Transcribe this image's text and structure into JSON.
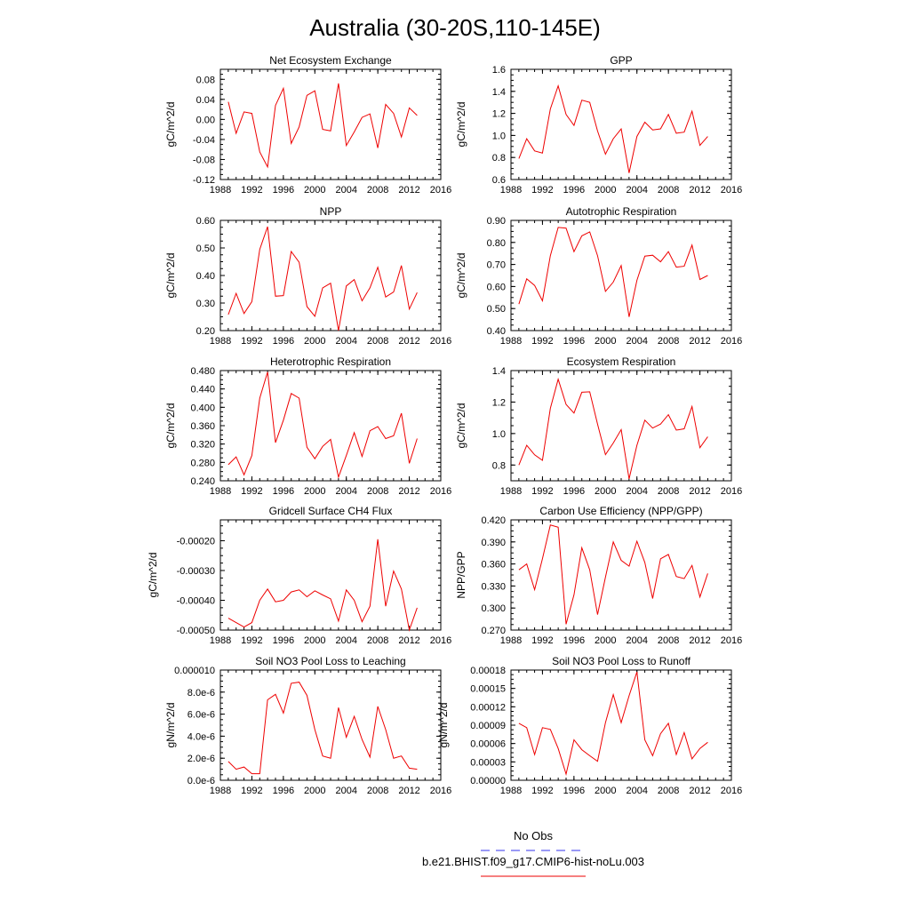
{
  "figure": {
    "title": "Australia (30-20S,110-145E)",
    "legend": [
      {
        "label": "No Obs",
        "color": "#3333ee",
        "dash": true
      },
      {
        "label": "b.e21.BHIST.f09_g17.CMIP6-hist-noLu.003",
        "color": "#ee0000",
        "dash": false
      }
    ]
  },
  "colors": {
    "series": "#ee0000",
    "axis": "#000000",
    "obs": "#3333ee"
  },
  "chart_data": [
    {
      "type": "line",
      "title": "Net Ecosystem Exchange",
      "ylabel": "gC/m^2/d",
      "xlim": [
        1988,
        2016
      ],
      "xticks": [
        1988,
        1992,
        1996,
        2000,
        2004,
        2008,
        2012,
        2016
      ],
      "xtick_labels": [
        "1988",
        "1992",
        "1996",
        "2000",
        "2004",
        "2008",
        "2012",
        "2016"
      ],
      "ylim": [
        -0.12,
        0.1
      ],
      "yticks": [
        -0.12,
        -0.08,
        -0.04,
        0.0,
        0.04,
        0.08
      ],
      "ytick_labels": [
        "-0.12",
        "-0.08",
        "-0.04",
        "0.00",
        "0.04",
        "0.08"
      ],
      "x": [
        1989,
        1990,
        1991,
        1992,
        1993,
        1994,
        1995,
        1996,
        1997,
        1998,
        1999,
        2000,
        2001,
        2002,
        2003,
        2004,
        2005,
        2006,
        2007,
        2008,
        2009,
        2010,
        2011,
        2012,
        2013
      ],
      "series": [
        {
          "values": [
            0.035,
            -0.028,
            0.015,
            0.012,
            -0.065,
            -0.095,
            0.028,
            0.062,
            -0.048,
            -0.015,
            0.048,
            0.057,
            -0.02,
            -0.023,
            0.072,
            -0.052,
            -0.025,
            0.004,
            0.011,
            -0.057,
            0.03,
            0.012,
            -0.035,
            0.023,
            0.008
          ]
        }
      ]
    },
    {
      "type": "line",
      "title": "GPP",
      "ylabel": "gC/m^2/d",
      "xlim": [
        1988,
        2016
      ],
      "xticks": [
        1988,
        1992,
        1996,
        2000,
        2004,
        2008,
        2012,
        2016
      ],
      "xtick_labels": [
        "1988",
        "1992",
        "1996",
        "2000",
        "2004",
        "2008",
        "2012",
        "2016"
      ],
      "ylim": [
        0.6,
        1.6
      ],
      "yticks": [
        0.6,
        0.8,
        1.0,
        1.2,
        1.4,
        1.6
      ],
      "ytick_labels": [
        "0.6",
        "0.8",
        "1.0",
        "1.2",
        "1.4",
        "1.6"
      ],
      "x": [
        1989,
        1990,
        1991,
        1992,
        1993,
        1994,
        1995,
        1996,
        1997,
        1998,
        1999,
        2000,
        2001,
        2002,
        2003,
        2004,
        2005,
        2006,
        2007,
        2008,
        2009,
        2010,
        2011,
        2012,
        2013
      ],
      "series": [
        {
          "values": [
            0.79,
            0.97,
            0.86,
            0.84,
            1.24,
            1.45,
            1.19,
            1.09,
            1.32,
            1.3,
            1.04,
            0.83,
            0.97,
            1.06,
            0.66,
            0.99,
            1.12,
            1.05,
            1.06,
            1.19,
            1.02,
            1.03,
            1.22,
            0.91,
            0.99
          ]
        }
      ]
    },
    {
      "type": "line",
      "title": "NPP",
      "ylabel": "gC/m^2/d",
      "xlim": [
        1988,
        2016
      ],
      "xticks": [
        1988,
        1992,
        1996,
        2000,
        2004,
        2008,
        2012,
        2016
      ],
      "xtick_labels": [
        "1988",
        "1992",
        "1996",
        "2000",
        "2004",
        "2008",
        "2012",
        "2016"
      ],
      "ylim": [
        0.2,
        0.6
      ],
      "yticks": [
        0.2,
        0.3,
        0.4,
        0.5,
        0.6
      ],
      "ytick_labels": [
        "0.20",
        "0.30",
        "0.40",
        "0.50",
        "0.60"
      ],
      "x": [
        1989,
        1990,
        1991,
        1992,
        1993,
        1994,
        1995,
        1996,
        1997,
        1998,
        1999,
        2000,
        2001,
        2002,
        2003,
        2004,
        2005,
        2006,
        2007,
        2008,
        2009,
        2010,
        2011,
        2012,
        2013
      ],
      "series": [
        {
          "values": [
            0.258,
            0.335,
            0.262,
            0.305,
            0.495,
            0.577,
            0.325,
            0.327,
            0.487,
            0.448,
            0.287,
            0.252,
            0.355,
            0.372,
            0.2,
            0.362,
            0.385,
            0.308,
            0.355,
            0.43,
            0.322,
            0.34,
            0.436,
            0.278,
            0.338
          ]
        }
      ]
    },
    {
      "type": "line",
      "title": "Autotrophic Respiration",
      "ylabel": "gC/m^2/d",
      "xlim": [
        1988,
        2016
      ],
      "xticks": [
        1988,
        1992,
        1996,
        2000,
        2004,
        2008,
        2012,
        2016
      ],
      "xtick_labels": [
        "1988",
        "1992",
        "1996",
        "2000",
        "2004",
        "2008",
        "2012",
        "2016"
      ],
      "ylim": [
        0.4,
        0.9
      ],
      "yticks": [
        0.4,
        0.5,
        0.6,
        0.7,
        0.8,
        0.9
      ],
      "ytick_labels": [
        "0.40",
        "0.50",
        "0.60",
        "0.70",
        "0.80",
        "0.90"
      ],
      "x": [
        1989,
        1990,
        1991,
        1992,
        1993,
        1994,
        1995,
        1996,
        1997,
        1998,
        1999,
        2000,
        2001,
        2002,
        2003,
        2004,
        2005,
        2006,
        2007,
        2008,
        2009,
        2010,
        2011,
        2012,
        2013
      ],
      "series": [
        {
          "values": [
            0.52,
            0.635,
            0.605,
            0.535,
            0.74,
            0.868,
            0.865,
            0.758,
            0.83,
            0.848,
            0.74,
            0.578,
            0.62,
            0.695,
            0.462,
            0.628,
            0.738,
            0.742,
            0.712,
            0.758,
            0.688,
            0.692,
            0.788,
            0.632,
            0.65
          ]
        }
      ]
    },
    {
      "type": "line",
      "title": "Heterotrophic Respiration",
      "ylabel": "gC/m^2/d",
      "xlim": [
        1988,
        2016
      ],
      "xticks": [
        1988,
        1992,
        1996,
        2000,
        2004,
        2008,
        2012,
        2016
      ],
      "xtick_labels": [
        "1988",
        "1992",
        "1996",
        "2000",
        "2004",
        "2008",
        "2012",
        "2016"
      ],
      "ylim": [
        0.24,
        0.48
      ],
      "yticks": [
        0.24,
        0.28,
        0.32,
        0.36,
        0.4,
        0.44,
        0.48
      ],
      "ytick_labels": [
        "0.240",
        "0.280",
        "0.320",
        "0.360",
        "0.400",
        "0.440",
        "0.480"
      ],
      "x": [
        1989,
        1990,
        1991,
        1992,
        1993,
        1994,
        1995,
        1996,
        1997,
        1998,
        1999,
        2000,
        2001,
        2002,
        2003,
        2004,
        2005,
        2006,
        2007,
        2008,
        2009,
        2010,
        2011,
        2012,
        2013
      ],
      "series": [
        {
          "values": [
            0.275,
            0.292,
            0.253,
            0.295,
            0.42,
            0.477,
            0.323,
            0.372,
            0.43,
            0.42,
            0.313,
            0.288,
            0.315,
            0.33,
            0.248,
            0.295,
            0.345,
            0.293,
            0.349,
            0.358,
            0.332,
            0.338,
            0.387,
            0.278,
            0.332
          ]
        }
      ]
    },
    {
      "type": "line",
      "title": "Ecosystem Respiration",
      "ylabel": "gC/m^2/d",
      "xlim": [
        1988,
        2016
      ],
      "xticks": [
        1988,
        1992,
        1996,
        2000,
        2004,
        2008,
        2012,
        2016
      ],
      "xtick_labels": [
        "1988",
        "1992",
        "1996",
        "2000",
        "2004",
        "2008",
        "2012",
        "2016"
      ],
      "ylim": [
        0.7,
        1.4
      ],
      "yticks": [
        0.8,
        1.0,
        1.2,
        1.4
      ],
      "ytick_labels": [
        "0.8",
        "1.0",
        "1.2",
        "1.4"
      ],
      "x": [
        1989,
        1990,
        1991,
        1992,
        1993,
        1994,
        1995,
        1996,
        1997,
        1998,
        1999,
        2000,
        2001,
        2002,
        2003,
        2004,
        2005,
        2006,
        2007,
        2008,
        2009,
        2010,
        2011,
        2012,
        2013
      ],
      "series": [
        {
          "values": [
            0.8,
            0.925,
            0.865,
            0.83,
            1.16,
            1.345,
            1.185,
            1.13,
            1.262,
            1.265,
            1.06,
            0.866,
            0.94,
            1.025,
            0.712,
            0.925,
            1.085,
            1.035,
            1.06,
            1.12,
            1.022,
            1.03,
            1.172,
            0.91,
            0.98
          ]
        }
      ]
    },
    {
      "type": "line",
      "title": "Gridcell Surface CH4 Flux",
      "ylabel": "gC/m^2/d",
      "xlim": [
        1988,
        2016
      ],
      "xticks": [
        1988,
        1992,
        1996,
        2000,
        2004,
        2008,
        2012,
        2016
      ],
      "xtick_labels": [
        "1988",
        "1992",
        "1996",
        "2000",
        "2004",
        "2008",
        "2012",
        "2016"
      ],
      "ylim": [
        -0.0005,
        -0.00013
      ],
      "yticks": [
        -0.0005,
        -0.0004,
        -0.0003,
        -0.0002
      ],
      "ytick_labels": [
        "-0.00050",
        "-0.00040",
        "-0.00030",
        "-0.00020"
      ],
      "x": [
        1989,
        1990,
        1991,
        1992,
        1993,
        1994,
        1995,
        1996,
        1997,
        1998,
        1999,
        2000,
        2001,
        2002,
        2003,
        2004,
        2005,
        2006,
        2007,
        2008,
        2009,
        2010,
        2011,
        2012,
        2013
      ],
      "series": [
        {
          "values": [
            -0.00046,
            -0.000475,
            -0.00049,
            -0.000475,
            -0.0004,
            -0.000362,
            -0.000405,
            -0.0004,
            -0.000372,
            -0.000365,
            -0.000388,
            -0.000368,
            -0.000382,
            -0.000395,
            -0.00047,
            -0.000365,
            -0.0004,
            -0.000472,
            -0.00042,
            -0.000195,
            -0.00042,
            -0.000302,
            -0.000362,
            -0.0005,
            -0.000425
          ]
        }
      ]
    },
    {
      "type": "line",
      "title": "Carbon Use Efficiency (NPP/GPP)",
      "ylabel": "NPP/GPP",
      "xlim": [
        1988,
        2016
      ],
      "xticks": [
        1988,
        1992,
        1996,
        2000,
        2004,
        2008,
        2012,
        2016
      ],
      "xtick_labels": [
        "1988",
        "1992",
        "1996",
        "2000",
        "2004",
        "2008",
        "2012",
        "2016"
      ],
      "ylim": [
        0.27,
        0.42
      ],
      "yticks": [
        0.27,
        0.3,
        0.33,
        0.36,
        0.39,
        0.42
      ],
      "ytick_labels": [
        "0.270",
        "0.300",
        "0.330",
        "0.360",
        "0.390",
        "0.420"
      ],
      "x": [
        1989,
        1990,
        1991,
        1992,
        1993,
        1994,
        1995,
        1996,
        1997,
        1998,
        1999,
        2000,
        2001,
        2002,
        2003,
        2004,
        2005,
        2006,
        2007,
        2008,
        2009,
        2010,
        2011,
        2012,
        2013
      ],
      "series": [
        {
          "values": [
            0.352,
            0.36,
            0.325,
            0.367,
            0.413,
            0.41,
            0.278,
            0.318,
            0.382,
            0.352,
            0.291,
            0.342,
            0.39,
            0.365,
            0.357,
            0.391,
            0.362,
            0.313,
            0.367,
            0.373,
            0.343,
            0.34,
            0.358,
            0.315,
            0.347
          ]
        }
      ]
    },
    {
      "type": "line",
      "title": "Soil NO3 Pool Loss to Leaching",
      "ylabel": "gN/m^2/d",
      "xlim": [
        1988,
        2016
      ],
      "xticks": [
        1988,
        1992,
        1996,
        2000,
        2004,
        2008,
        2012,
        2016
      ],
      "xtick_labels": [
        "1988",
        "1992",
        "1996",
        "2000",
        "2004",
        "2008",
        "2012",
        "2016"
      ],
      "ylim": [
        0.0,
        1e-05
      ],
      "yticks": [
        0.0,
        2e-06,
        4e-06,
        6e-06,
        8e-06,
        1e-05
      ],
      "ytick_labels": [
        "0.0e-6",
        "2.0e-6",
        "4.0e-6",
        "6.0e-6",
        "8.0e-6",
        "0.000010"
      ],
      "x": [
        1989,
        1990,
        1991,
        1992,
        1993,
        1994,
        1995,
        1996,
        1997,
        1998,
        1999,
        2000,
        2001,
        2002,
        2003,
        2004,
        2005,
        2006,
        2007,
        2008,
        2009,
        2010,
        2011,
        2012,
        2013
      ],
      "series": [
        {
          "values": [
            1.7e-06,
            1e-06,
            1.2e-06,
            6e-07,
            6e-07,
            7.3e-06,
            7.8e-06,
            6.1e-06,
            8.8e-06,
            8.9e-06,
            7.7e-06,
            4.6e-06,
            2.2e-06,
            2e-06,
            6.6e-06,
            3.9e-06,
            5.8e-06,
            3.7e-06,
            2.1e-06,
            6.7e-06,
            4.6e-06,
            2e-06,
            2.2e-06,
            1.1e-06,
            1e-06
          ]
        }
      ]
    },
    {
      "type": "line",
      "title": "Soil NO3 Pool Loss to Runoff",
      "ylabel": "gN/m^2/d",
      "xlim": [
        1988,
        2016
      ],
      "xticks": [
        1988,
        1992,
        1996,
        2000,
        2004,
        2008,
        2012,
        2016
      ],
      "xtick_labels": [
        "1988",
        "1992",
        "1996",
        "2000",
        "2004",
        "2008",
        "2012",
        "2016"
      ],
      "ylim": [
        0.0,
        0.00018
      ],
      "yticks": [
        0.0,
        3e-05,
        6e-05,
        9e-05,
        0.00012,
        0.00015,
        0.00018
      ],
      "ytick_labels": [
        "0.00000",
        "0.00003",
        "0.00006",
        "0.00009",
        "0.00012",
        "0.00015",
        "0.00018"
      ],
      "x": [
        1989,
        1990,
        1991,
        1992,
        1993,
        1994,
        1995,
        1996,
        1997,
        1998,
        1999,
        2000,
        2001,
        2002,
        2003,
        2004,
        2005,
        2006,
        2007,
        2008,
        2009,
        2010,
        2011,
        2012,
        2013
      ],
      "series": [
        {
          "values": [
            9.3e-05,
            8.6e-05,
            4.2e-05,
            8.6e-05,
            8.3e-05,
            5.2e-05,
            1e-05,
            6.6e-05,
            5e-05,
            4e-05,
            3.1e-05,
            9.4e-05,
            0.00014,
            9.4e-05,
            0.000138,
            0.000177,
            6.6e-05,
            4e-05,
            7.6e-05,
            9.3e-05,
            4.2e-05,
            7.8e-05,
            3.5e-05,
            5.2e-05,
            6.2e-05
          ]
        }
      ]
    }
  ]
}
